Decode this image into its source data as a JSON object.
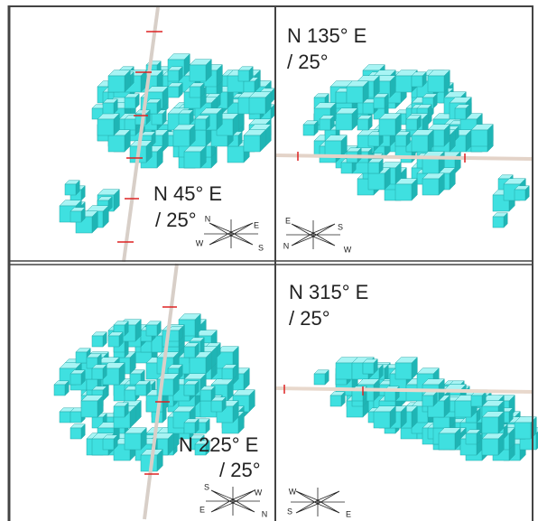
{
  "panels": [
    {
      "title": "N 45° E",
      "dip": "/ 25°",
      "compass": [
        "N",
        "E",
        "W",
        "S"
      ]
    },
    {
      "title": "N 135° E",
      "dip": "/ 25°",
      "compass": [
        "E",
        "S",
        "N",
        "W"
      ]
    },
    {
      "title": "N 225° E",
      "dip": "/ 25°",
      "compass": [
        "S",
        "W",
        "E",
        "N"
      ]
    },
    {
      "title": "N 315° E",
      "dip": "/ 25°",
      "compass": [
        "W",
        "S",
        "E"
      ]
    }
  ]
}
